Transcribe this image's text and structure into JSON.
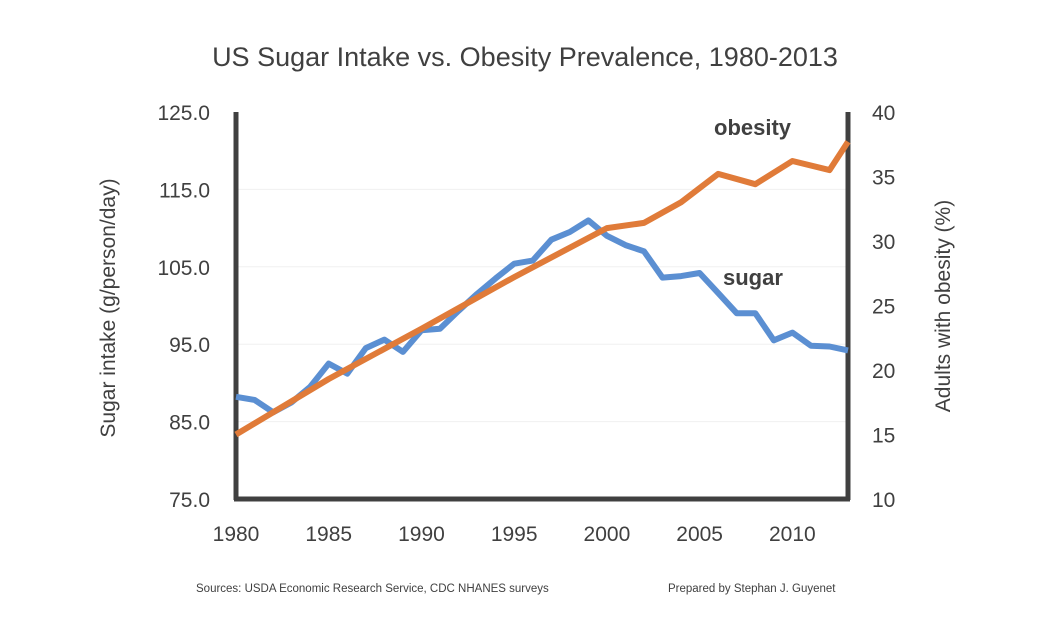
{
  "chart_data": {
    "type": "line",
    "title": "US Sugar Intake vs. Obesity Prevalence, 1980-2013",
    "xlabel": "",
    "ylabel_left": "Sugar intake (g/person/day)",
    "ylabel_right": "Adults with obesity (%)",
    "xlim": [
      1980,
      2013
    ],
    "ylim_left": [
      75,
      125
    ],
    "ylim_right": [
      10,
      40
    ],
    "x_ticks": [
      "1980",
      "1985",
      "1990",
      "1995",
      "2000",
      "2005",
      "2010"
    ],
    "y_ticks_left": [
      "125.0",
      "115.0",
      "105.0",
      "95.0",
      "85.0",
      "75.0"
    ],
    "y_ticks_right": [
      "40",
      "35",
      "30",
      "25",
      "20",
      "15",
      "10"
    ],
    "series": [
      {
        "name": "sugar",
        "axis": "left",
        "color": "#5B8FD2",
        "x": [
          1980,
          1981,
          1982,
          1983,
          1984,
          1985,
          1986,
          1987,
          1988,
          1989,
          1990,
          1991,
          1992,
          1993,
          1994,
          1995,
          1996,
          1997,
          1998,
          1999,
          2000,
          2001,
          2002,
          2003,
          2004,
          2005,
          2006,
          2007,
          2008,
          2009,
          2010,
          2011,
          2012,
          2013
        ],
        "values": [
          88.2,
          87.8,
          86.2,
          87.5,
          89.5,
          92.5,
          91.2,
          94.5,
          95.6,
          94.0,
          96.8,
          97.0,
          99.3,
          101.5,
          103.5,
          105.4,
          105.8,
          108.5,
          109.5,
          111.0,
          109.0,
          107.8,
          107.0,
          103.6,
          103.8,
          104.2,
          101.6,
          99.0,
          99.0,
          95.5,
          96.5,
          94.8,
          94.7,
          94.2
        ]
      },
      {
        "name": "obesity",
        "axis": "right",
        "color": "#E07B39",
        "x": [
          1980,
          1985,
          1990,
          1995,
          2000,
          2002,
          2004,
          2006,
          2008,
          2010,
          2012,
          2013
        ],
        "values": [
          15.0,
          19.3,
          23.2,
          27.2,
          31.0,
          31.4,
          33.0,
          35.2,
          34.4,
          36.2,
          35.5,
          37.7
        ]
      }
    ]
  },
  "series_labels": {
    "obesity": "obesity",
    "sugar": "sugar"
  },
  "footer": {
    "sources": "Sources: USDA Economic Research Service, CDC NHANES surveys",
    "credit": "Prepared by Stephan J. Guyenet"
  }
}
